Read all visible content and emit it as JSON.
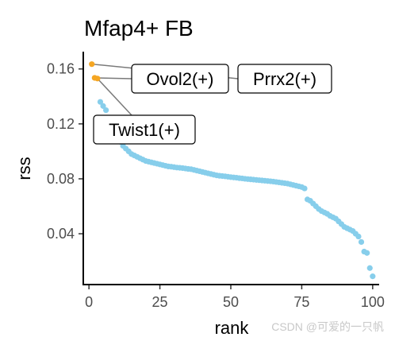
{
  "chart_data": {
    "type": "scatter",
    "title": "Mfap4+ FB",
    "xlabel": "rank",
    "ylabel": "rss",
    "xlim": [
      -2,
      102
    ],
    "ylim": [
      0.003,
      0.172
    ],
    "x_ticks": [
      0,
      25,
      50,
      75,
      100
    ],
    "x_tick_labels": [
      "0",
      "25",
      "50",
      "75",
      "100"
    ],
    "y_ticks": [
      0.04,
      0.08,
      0.12,
      0.16
    ],
    "y_tick_labels": [
      "0.04",
      "0.08",
      "0.12",
      "0.16"
    ],
    "grid": false,
    "legend": "none",
    "colors": {
      "highlight": "#f5a623",
      "default": "#87ceeb"
    },
    "highlighted": [
      {
        "label": "Prrx2(+)",
        "x": 1,
        "y": 0.1635
      },
      {
        "label": "Ovol2(+)",
        "x": 2,
        "y": 0.1535
      },
      {
        "label": "Twist1(+)",
        "x": 3,
        "y": 0.153
      }
    ],
    "points": [
      [
        1,
        0.1635
      ],
      [
        2,
        0.1535
      ],
      [
        3,
        0.153
      ],
      [
        4,
        0.136
      ],
      [
        5,
        0.133
      ],
      [
        6,
        0.13
      ],
      [
        7,
        0.12
      ],
      [
        8,
        0.115
      ],
      [
        9,
        0.113
      ],
      [
        10,
        0.11
      ],
      [
        11,
        0.107
      ],
      [
        12,
        0.104
      ],
      [
        13,
        0.102
      ],
      [
        14,
        0.1
      ],
      [
        15,
        0.098
      ],
      [
        16,
        0.097
      ],
      [
        17,
        0.096
      ],
      [
        18,
        0.095
      ],
      [
        19,
        0.094
      ],
      [
        20,
        0.093
      ],
      [
        21,
        0.0925
      ],
      [
        22,
        0.092
      ],
      [
        23,
        0.0915
      ],
      [
        24,
        0.091
      ],
      [
        25,
        0.0905
      ],
      [
        26,
        0.09
      ],
      [
        27,
        0.0895
      ],
      [
        28,
        0.089
      ],
      [
        29,
        0.0888
      ],
      [
        30,
        0.0885
      ],
      [
        31,
        0.0882
      ],
      [
        32,
        0.088
      ],
      [
        33,
        0.0878
      ],
      [
        34,
        0.0875
      ],
      [
        35,
        0.0872
      ],
      [
        36,
        0.087
      ],
      [
        37,
        0.0865
      ],
      [
        38,
        0.086
      ],
      [
        39,
        0.0855
      ],
      [
        40,
        0.085
      ],
      [
        41,
        0.0845
      ],
      [
        42,
        0.084
      ],
      [
        43,
        0.0835
      ],
      [
        44,
        0.083
      ],
      [
        45,
        0.0825
      ],
      [
        46,
        0.0822
      ],
      [
        47,
        0.082
      ],
      [
        48,
        0.0818
      ],
      [
        49,
        0.0815
      ],
      [
        50,
        0.0812
      ],
      [
        51,
        0.081
      ],
      [
        52,
        0.0808
      ],
      [
        53,
        0.0805
      ],
      [
        54,
        0.0803
      ],
      [
        55,
        0.08
      ],
      [
        56,
        0.0798
      ],
      [
        57,
        0.0796
      ],
      [
        58,
        0.0794
      ],
      [
        59,
        0.0792
      ],
      [
        60,
        0.079
      ],
      [
        61,
        0.0788
      ],
      [
        62,
        0.0786
      ],
      [
        63,
        0.0784
      ],
      [
        64,
        0.0782
      ],
      [
        65,
        0.078
      ],
      [
        66,
        0.0777
      ],
      [
        67,
        0.0774
      ],
      [
        68,
        0.0771
      ],
      [
        69,
        0.0768
      ],
      [
        70,
        0.0765
      ],
      [
        71,
        0.076
      ],
      [
        72,
        0.0755
      ],
      [
        73,
        0.075
      ],
      [
        74,
        0.0745
      ],
      [
        75,
        0.074
      ],
      [
        76,
        0.073
      ],
      [
        77,
        0.065
      ],
      [
        78,
        0.064
      ],
      [
        79,
        0.062
      ],
      [
        80,
        0.06
      ],
      [
        81,
        0.058
      ],
      [
        82,
        0.0565
      ],
      [
        83,
        0.0555
      ],
      [
        84,
        0.0545
      ],
      [
        85,
        0.053
      ],
      [
        86,
        0.052
      ],
      [
        87,
        0.051
      ],
      [
        88,
        0.049
      ],
      [
        89,
        0.047
      ],
      [
        90,
        0.045
      ],
      [
        91,
        0.044
      ],
      [
        92,
        0.043
      ],
      [
        93,
        0.042
      ],
      [
        94,
        0.04
      ],
      [
        95,
        0.038
      ],
      [
        96,
        0.034
      ],
      [
        97,
        0.027
      ],
      [
        98,
        0.026
      ],
      [
        99,
        0.015
      ],
      [
        100,
        0.009
      ]
    ]
  },
  "watermark": "CSDN @可爱的一只帆"
}
